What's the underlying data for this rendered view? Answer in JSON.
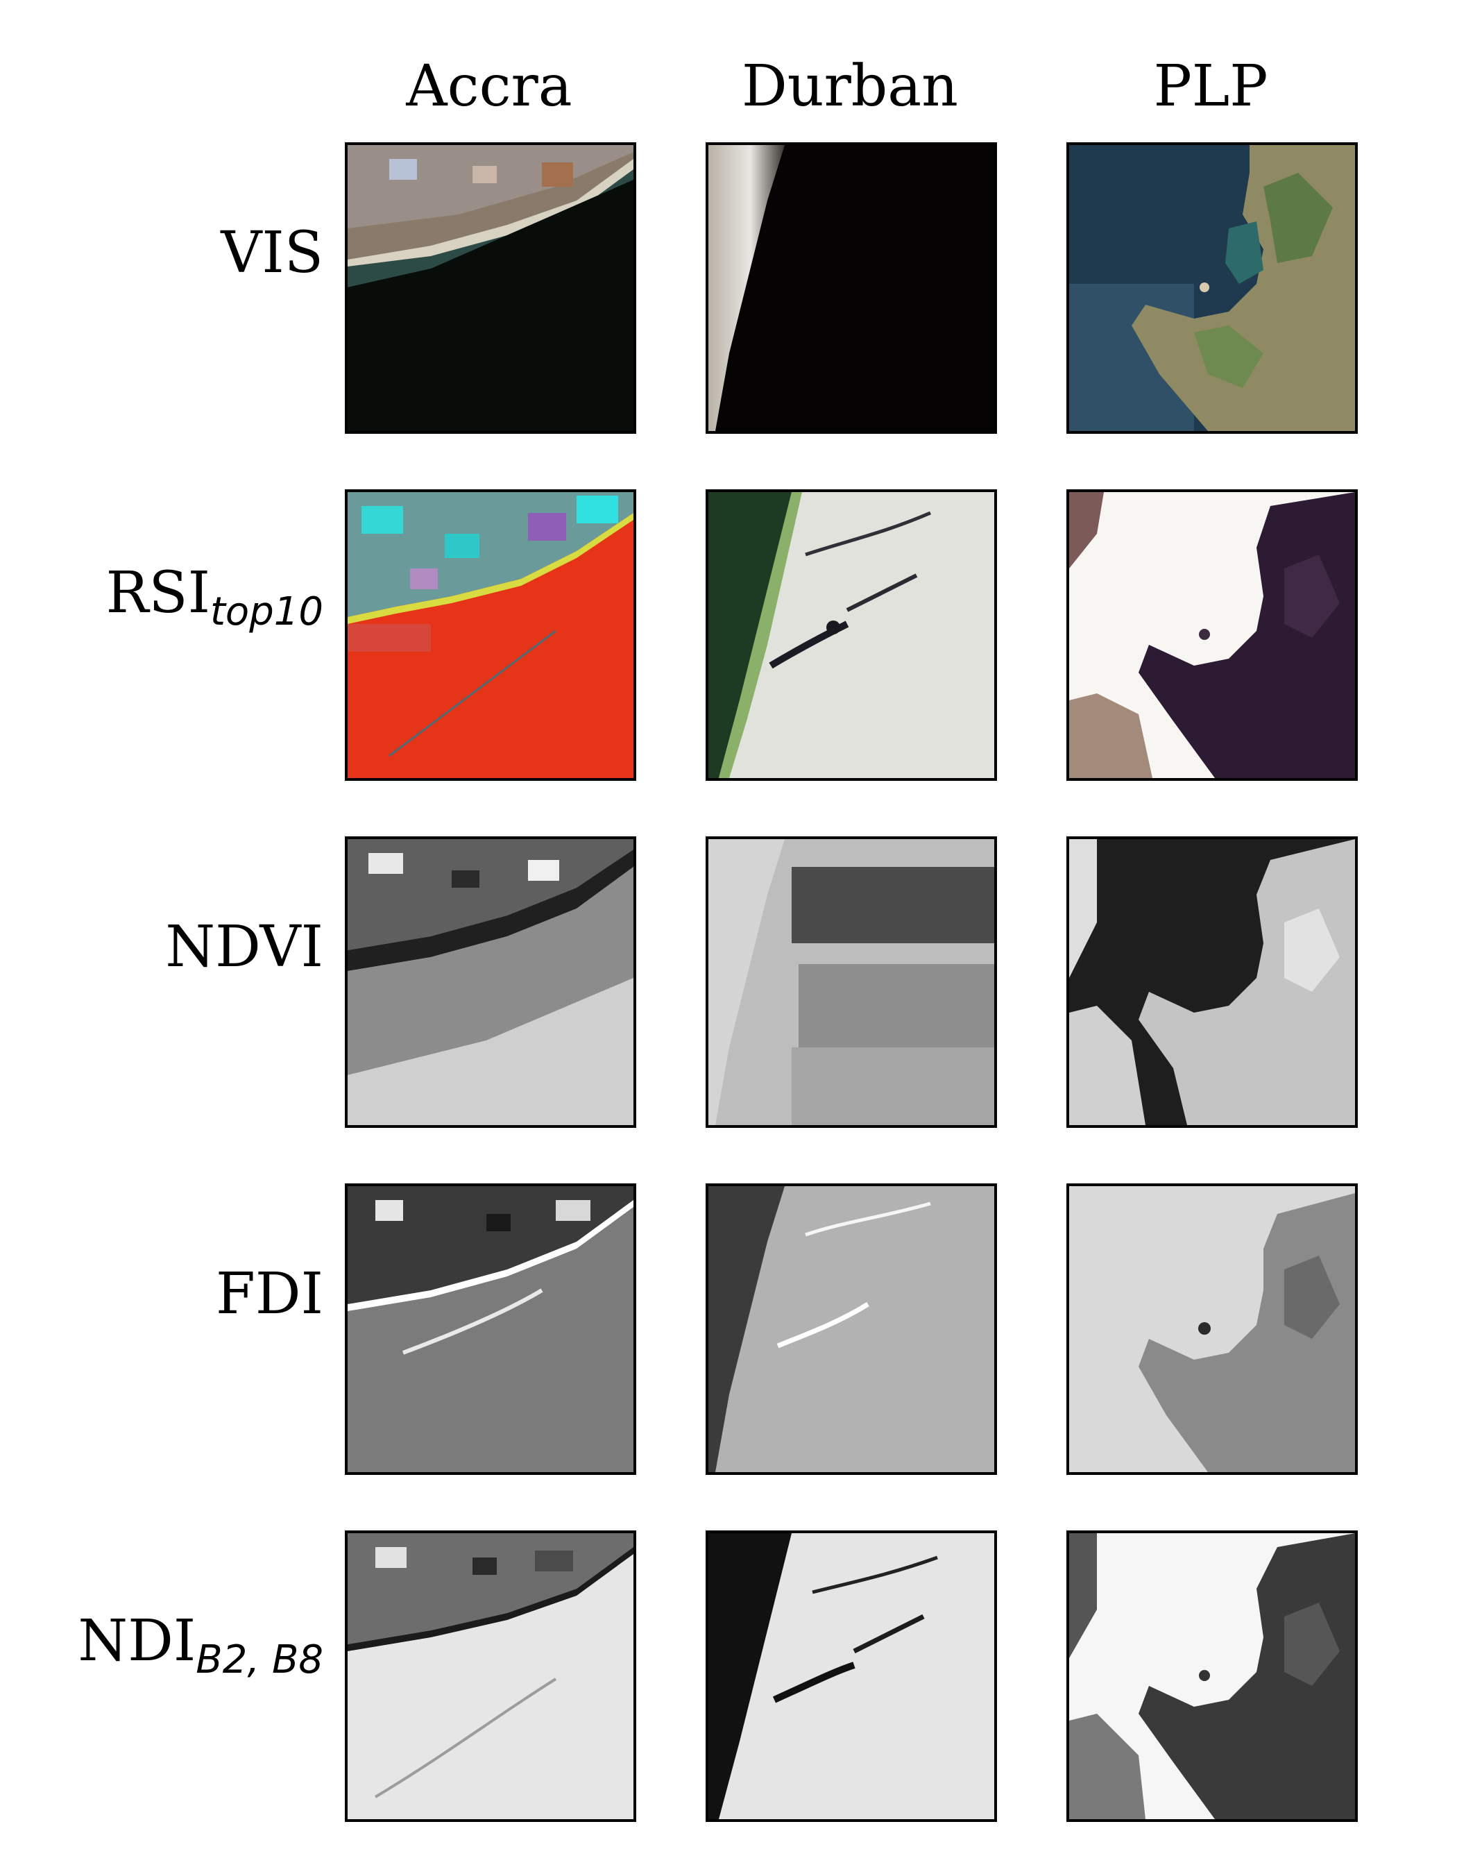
{
  "columns": [
    "Accra",
    "Durban",
    "PLP"
  ],
  "rows": [
    {
      "label": "VIS",
      "sub": ""
    },
    {
      "label": "RSI",
      "sub": "top10"
    },
    {
      "label": "NDVI",
      "sub": ""
    },
    {
      "label": "FDI",
      "sub": ""
    },
    {
      "label": "NDI",
      "sub": "B2, B8"
    }
  ]
}
